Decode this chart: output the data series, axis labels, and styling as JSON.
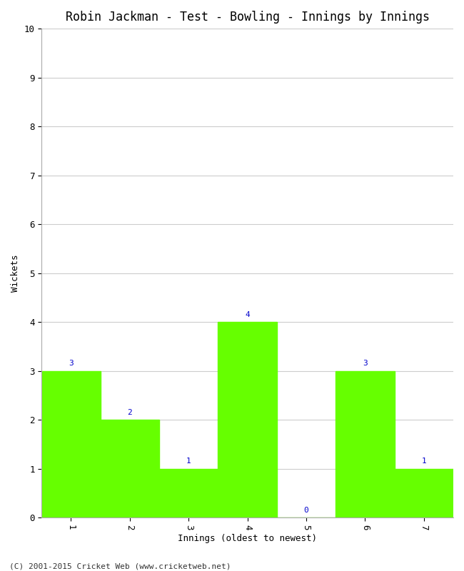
{
  "title": "Robin Jackman - Test - Bowling - Innings by Innings",
  "xlabel": "Innings (oldest to newest)",
  "ylabel": "Wickets",
  "categories": [
    1,
    2,
    3,
    4,
    5,
    6,
    7
  ],
  "values": [
    3,
    2,
    1,
    4,
    0,
    3,
    1
  ],
  "bar_color": "#66ff00",
  "bar_edge_color": "#66ff00",
  "label_color": "#0000cc",
  "ylim": [
    0,
    10
  ],
  "yticks": [
    0,
    1,
    2,
    3,
    4,
    5,
    6,
    7,
    8,
    9,
    10
  ],
  "background_color": "#ffffff",
  "grid_color": "#cccccc",
  "title_fontsize": 12,
  "axis_label_fontsize": 9,
  "tick_fontsize": 9,
  "bar_label_fontsize": 8,
  "footer_text": "(C) 2001-2015 Cricket Web (www.cricketweb.net)",
  "footer_fontsize": 8
}
